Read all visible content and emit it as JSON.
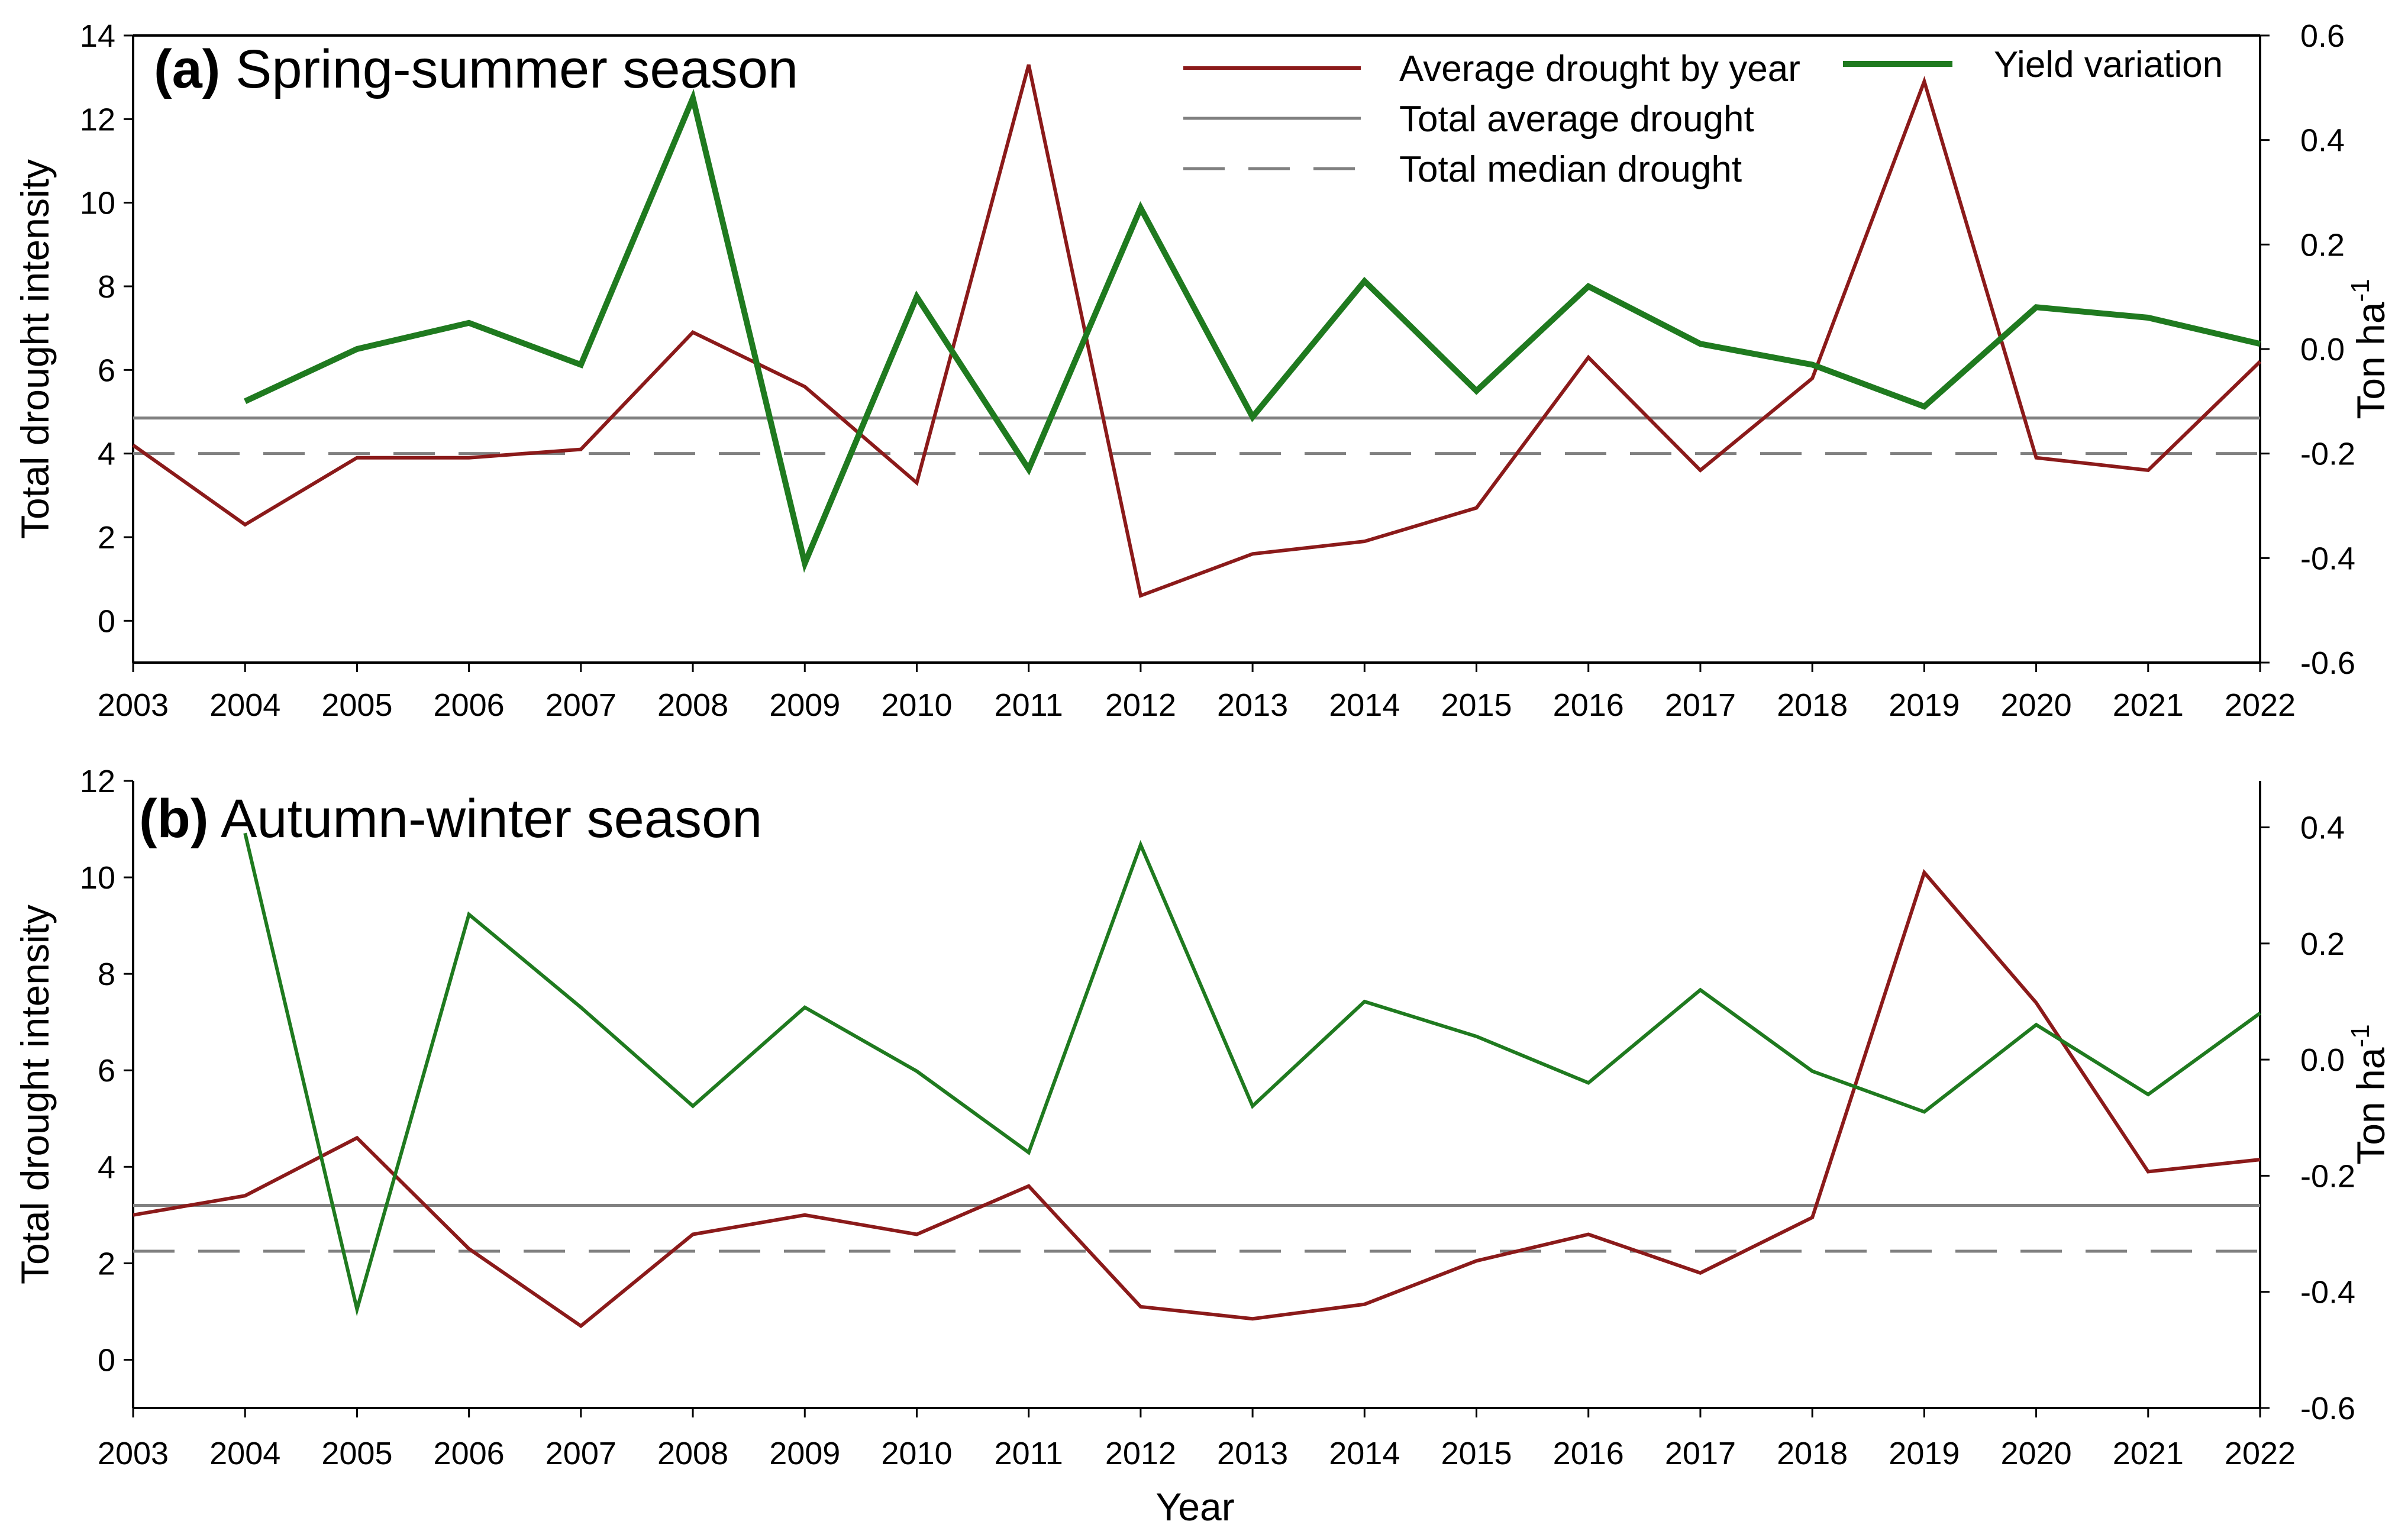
{
  "colors": {
    "drought": "#8b1a1a",
    "yield": "#1f7a1f",
    "avg": "#808080",
    "median": "#808080",
    "axis": "#000000"
  },
  "xlabel": "Year",
  "legend": {
    "drought": "Average drought by year",
    "avg": "Total average drought",
    "median": "Total median drought",
    "yield": "Yield variation"
  },
  "chart_data": [
    {
      "type": "line",
      "panel_label": "(a)",
      "title": "Spring-summer season",
      "xlabel": "",
      "ylabel": "Total drought intensity",
      "y2label": "Ton ha",
      "y2label_sup": "-1",
      "categories": [
        "2003",
        "2004",
        "2005",
        "2006",
        "2007",
        "2008",
        "2009",
        "2010",
        "2011",
        "2012",
        "2013",
        "2014",
        "2015",
        "2016",
        "2017",
        "2018",
        "2019",
        "2020",
        "2021",
        "2022"
      ],
      "ylim": [
        -1,
        14
      ],
      "yticks": [
        0,
        2,
        4,
        6,
        8,
        10,
        12,
        14
      ],
      "y2lim": [
        -0.6,
        0.6
      ],
      "y2ticks": [
        -0.6,
        -0.4,
        -0.2,
        0.0,
        0.2,
        0.4,
        0.6
      ],
      "y2tick_labels": [
        "-0.6",
        "-0.4",
        "-0.2",
        "0.0",
        "0.2",
        "0.4",
        "0.6"
      ],
      "series": [
        {
          "name": "Average drought by year",
          "axis": "left",
          "values": [
            4.2,
            2.3,
            3.9,
            3.9,
            4.1,
            6.9,
            5.6,
            3.3,
            13.3,
            0.6,
            1.6,
            1.9,
            2.7,
            6.3,
            3.6,
            5.8,
            12.9,
            3.9,
            3.6,
            6.2
          ]
        },
        {
          "name": "Yield variation",
          "axis": "right",
          "values": [
            null,
            -0.1,
            0.0,
            0.05,
            -0.03,
            0.48,
            -0.41,
            0.1,
            -0.23,
            0.27,
            -0.13,
            0.13,
            -0.08,
            0.12,
            0.01,
            -0.03,
            -0.11,
            0.08,
            0.06,
            0.01
          ]
        }
      ],
      "reference_lines": {
        "total_average": 4.85,
        "total_median": 4.0
      }
    },
    {
      "type": "line",
      "panel_label": "(b)",
      "title": "Autumn-winter season",
      "xlabel": "Year",
      "ylabel": "Total drought intensity",
      "y2label": "Ton ha",
      "y2label_sup": "-1",
      "categories": [
        "2003",
        "2004",
        "2005",
        "2006",
        "2007",
        "2008",
        "2009",
        "2010",
        "2011",
        "2012",
        "2013",
        "2014",
        "2015",
        "2016",
        "2017",
        "2018",
        "2019",
        "2020",
        "2021",
        "2022"
      ],
      "ylim": [
        -1,
        12
      ],
      "yticks": [
        0,
        2,
        4,
        6,
        8,
        10,
        12
      ],
      "y2lim": [
        -0.6,
        0.48
      ],
      "y2ticks": [
        -0.6,
        -0.4,
        -0.2,
        0.0,
        0.2,
        0.4
      ],
      "y2tick_labels": [
        "-0.6",
        "-0.4",
        "-0.2",
        "0.0",
        "0.2",
        "0.4"
      ],
      "series": [
        {
          "name": "Average drought by year",
          "axis": "left",
          "values": [
            3.0,
            3.4,
            4.6,
            2.3,
            0.7,
            2.6,
            3.0,
            2.6,
            3.6,
            1.1,
            0.85,
            1.15,
            2.05,
            2.6,
            1.8,
            2.95,
            10.1,
            7.4,
            3.9,
            4.15
          ]
        },
        {
          "name": "Yield variation",
          "axis": "right",
          "values": [
            null,
            0.39,
            -0.43,
            0.25,
            0.09,
            -0.08,
            0.09,
            -0.02,
            -0.16,
            0.37,
            -0.08,
            0.1,
            0.04,
            -0.04,
            0.12,
            -0.02,
            -0.09,
            0.06,
            -0.06,
            0.08
          ]
        }
      ],
      "reference_lines": {
        "total_average": 3.2,
        "total_median": 2.25
      }
    }
  ]
}
